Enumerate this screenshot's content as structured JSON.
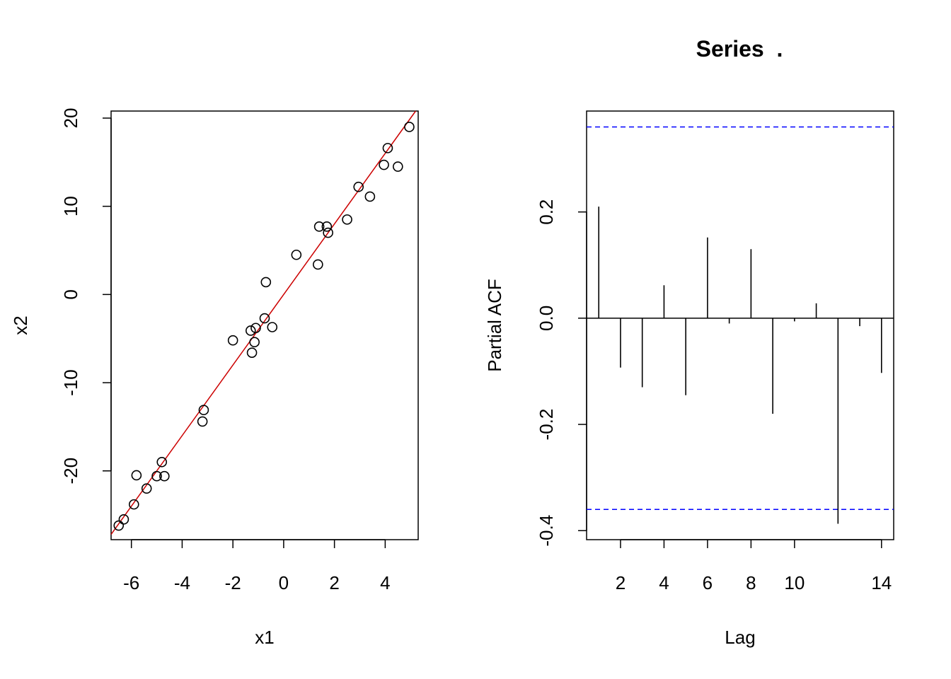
{
  "chart_data": [
    {
      "type": "scatter",
      "title": "",
      "xlabel": "x1",
      "ylabel": "x2",
      "xlim": [
        -6.8,
        5.3
      ],
      "ylim": [
        -27.8,
        20.8
      ],
      "xticks": [
        -6,
        -4,
        -2,
        0,
        2,
        4
      ],
      "yticks": [
        -20,
        -10,
        0,
        10,
        20
      ],
      "grid": false,
      "point_color": "#000000",
      "points": [
        {
          "x": -6.5,
          "y": -26.2
        },
        {
          "x": -6.3,
          "y": -25.5
        },
        {
          "x": -5.9,
          "y": -23.8
        },
        {
          "x": -5.8,
          "y": -20.5
        },
        {
          "x": -5.4,
          "y": -22.0
        },
        {
          "x": -5.0,
          "y": -20.6
        },
        {
          "x": -4.8,
          "y": -19.0
        },
        {
          "x": -4.7,
          "y": -20.6
        },
        {
          "x": -3.2,
          "y": -14.4
        },
        {
          "x": -3.15,
          "y": -13.1
        },
        {
          "x": -2.0,
          "y": -5.2
        },
        {
          "x": -1.3,
          "y": -4.1
        },
        {
          "x": -1.25,
          "y": -6.6
        },
        {
          "x": -1.15,
          "y": -5.4
        },
        {
          "x": -1.1,
          "y": -3.8
        },
        {
          "x": -0.75,
          "y": -2.7
        },
        {
          "x": -0.7,
          "y": 1.4
        },
        {
          "x": -0.45,
          "y": -3.7
        },
        {
          "x": 0.5,
          "y": 4.5
        },
        {
          "x": 1.35,
          "y": 3.4
        },
        {
          "x": 1.4,
          "y": 7.7
        },
        {
          "x": 1.7,
          "y": 7.7
        },
        {
          "x": 1.75,
          "y": 7.0
        },
        {
          "x": 2.5,
          "y": 8.5
        },
        {
          "x": 2.95,
          "y": 12.2
        },
        {
          "x": 3.4,
          "y": 11.1
        },
        {
          "x": 3.95,
          "y": 14.7
        },
        {
          "x": 4.1,
          "y": 16.6
        },
        {
          "x": 4.5,
          "y": 14.5
        },
        {
          "x": 4.95,
          "y": 19.0
        }
      ],
      "fit_line": {
        "slope": 4.0,
        "intercept": 0.0,
        "color": "#cc0000"
      }
    },
    {
      "type": "bar",
      "title": "Series  .",
      "xlabel": "Lag",
      "ylabel": "Partial ACF",
      "xlim": [
        0.44,
        14.56
      ],
      "ylim": [
        -0.417,
        0.39
      ],
      "xticks": [
        2,
        4,
        6,
        8,
        10,
        14
      ],
      "yticks": [
        -0.4,
        -0.2,
        0.0,
        0.2
      ],
      "ytick_labels": [
        "-0.4",
        "-0.2",
        "0.0",
        "0.2"
      ],
      "grid": false,
      "lags": [
        1,
        2,
        3,
        4,
        5,
        6,
        7,
        8,
        9,
        10,
        11,
        12,
        13,
        14
      ],
      "values": [
        0.21,
        -0.093,
        -0.13,
        0.062,
        -0.145,
        0.152,
        -0.01,
        0.13,
        -0.18,
        -0.006,
        0.028,
        -0.387,
        -0.015,
        -0.103
      ],
      "confidence_bound": 0.36,
      "confidence_color": "#0000ff",
      "bar_color": "#000000"
    }
  ]
}
